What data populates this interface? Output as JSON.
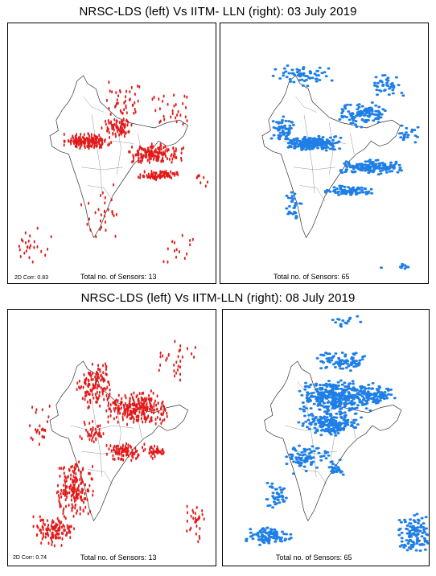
{
  "rows": [
    {
      "title": "NRSC-LDS (left) Vs IITM- LLN (right): 03 July 2019",
      "left": {
        "corr_text": "2D Corr: 0.83",
        "sensors_text": "Total no. of Sensors: 13",
        "color": "#e31a1a"
      },
      "right": {
        "sensors_text": "Total no. of Sensors: 65",
        "color": "#1f7fe6"
      }
    },
    {
      "title": "NRSC-LDS (left) Vs IITM-LLN (right): 08 July 2019",
      "left": {
        "corr_text": "2D Corr: 0.74",
        "sensors_text": "Total no. of Sensors: 13",
        "color": "#e31a1a"
      },
      "right": {
        "sensors_text": "Total no. of Sensors: 65",
        "color": "#1f7fe6"
      }
    }
  ]
}
